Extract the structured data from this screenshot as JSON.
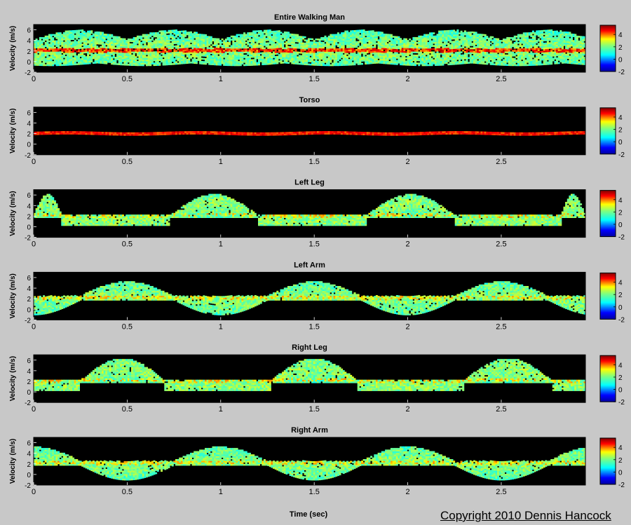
{
  "figure": {
    "background": "#c8c8c8",
    "copyright": "Copyright 2010 Dennis Hancock",
    "xlabel": "Time (sec)"
  },
  "chart_data": [
    {
      "type": "heatmap",
      "title": "Entire Walking Man",
      "ylabel": "Velocity (m/s)",
      "xlim": [
        0,
        2.95
      ],
      "ylim": [
        -2,
        7
      ],
      "xticks": [
        "0",
        "0.5",
        "1",
        "1.5",
        "2",
        "2.5"
      ],
      "yticks": [
        "6",
        "4",
        "2",
        "0",
        "-2"
      ],
      "colorbar_ticks": [
        "4",
        "2",
        "0",
        "-2"
      ],
      "colorbar_range": [
        -2,
        5.5
      ],
      "background": "#000000",
      "mean_velocity": 2.0,
      "envelope_peaks": [
        {
          "t": 0.07,
          "v": 6.0
        },
        {
          "t": 0.5,
          "v": 6.2
        },
        {
          "t": 1.0,
          "v": 6.0
        },
        {
          "t": 1.5,
          "v": 6.1
        },
        {
          "t": 2.0,
          "v": 6.2
        },
        {
          "t": 2.5,
          "v": 5.5
        }
      ]
    },
    {
      "type": "heatmap",
      "title": "Torso",
      "ylabel": "Velocity (m/s)",
      "xlim": [
        0,
        2.95
      ],
      "ylim": [
        -2,
        7
      ],
      "xticks": [
        "0",
        "0.5",
        "1",
        "1.5",
        "2",
        "2.5"
      ],
      "yticks": [
        "6",
        "4",
        "2",
        "0",
        "-2"
      ],
      "colorbar_ticks": [
        "4",
        "2",
        "0",
        "-2"
      ],
      "colorbar_range": [
        -2,
        5.5
      ],
      "background": "#000000",
      "mean_velocity": 2.0
    },
    {
      "type": "heatmap",
      "title": "Left Leg",
      "ylabel": "Velocity (m/s)",
      "xlim": [
        0,
        2.95
      ],
      "ylim": [
        -2,
        7
      ],
      "xticks": [
        "0",
        "0.5",
        "1",
        "1.5",
        "2",
        "2.5"
      ],
      "yticks": [
        "6",
        "4",
        "2",
        "0",
        "-2"
      ],
      "colorbar_ticks": [
        "4",
        "2",
        "0",
        "-2"
      ],
      "colorbar_range": [
        -2,
        5.5
      ],
      "background": "#000000",
      "swing_phases": [
        [
          0,
          0.15
        ],
        [
          0.73,
          1.2
        ],
        [
          1.78,
          2.25
        ],
        [
          2.82,
          2.95
        ]
      ],
      "peak_velocity": 6.0,
      "stance_velocity": 0.5
    },
    {
      "type": "heatmap",
      "title": "Left Arm",
      "ylabel": "Velocity (m/s)",
      "xlim": [
        0,
        2.95
      ],
      "ylim": [
        -2,
        7
      ],
      "xticks": [
        "0",
        "0.5",
        "1",
        "1.5",
        "2",
        "2.5"
      ],
      "yticks": [
        "6",
        "4",
        "2",
        "0",
        "-2"
      ],
      "colorbar_ticks": [
        "4",
        "2",
        "0",
        "-2"
      ],
      "colorbar_range": [
        -2,
        5.5
      ],
      "background": "#000000",
      "oscillation_peaks": [
        {
          "t": 0.5,
          "v": 4.5
        },
        {
          "t": 1.0,
          "v": -0.5
        },
        {
          "t": 1.5,
          "v": 4.8
        },
        {
          "t": 2.05,
          "v": -0.5
        },
        {
          "t": 2.55,
          "v": 4.8
        }
      ]
    },
    {
      "type": "heatmap",
      "title": "Right Leg",
      "ylabel": "Velocity (m/s)",
      "xlim": [
        0,
        2.95
      ],
      "ylim": [
        -2,
        7
      ],
      "xticks": [
        "0",
        "0.5",
        "1",
        "1.5",
        "2",
        "2.5"
      ],
      "yticks": [
        "6",
        "4",
        "2",
        "0",
        "-2"
      ],
      "colorbar_ticks": [
        "4",
        "2",
        "0",
        "-2"
      ],
      "colorbar_range": [
        -2,
        5.5
      ],
      "background": "#000000",
      "swing_phases": [
        [
          0.25,
          0.7
        ],
        [
          1.27,
          1.73
        ],
        [
          2.3,
          2.77
        ]
      ],
      "peak_velocity": 6.2,
      "stance_velocity": 0.5
    },
    {
      "type": "heatmap",
      "title": "Right Arm",
      "ylabel": "Velocity (m/s)",
      "xlim": [
        0,
        2.95
      ],
      "ylim": [
        -2,
        7
      ],
      "xticks": [
        "0",
        "0.5",
        "1",
        "1.5",
        "2",
        "2.5"
      ],
      "yticks": [
        "6",
        "4",
        "2",
        "0",
        "-2"
      ],
      "colorbar_ticks": [
        "4",
        "2",
        "0",
        "-2"
      ],
      "colorbar_range": [
        -2,
        5.5
      ],
      "background": "#000000",
      "oscillation_peaks": [
        {
          "t": 0.02,
          "v": 4.5
        },
        {
          "t": 0.5,
          "v": -0.8
        },
        {
          "t": 1.0,
          "v": 5.0
        },
        {
          "t": 1.5,
          "v": -0.8
        },
        {
          "t": 2.0,
          "v": 5.0
        },
        {
          "t": 2.5,
          "v": -0.8
        }
      ]
    }
  ]
}
